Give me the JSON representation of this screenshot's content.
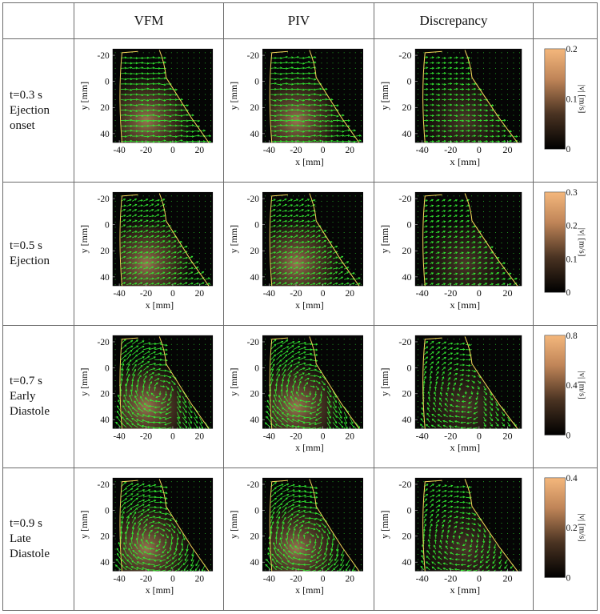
{
  "columns": [
    "VFM",
    "PIV",
    "Discrepancy"
  ],
  "rows": [
    {
      "time": "t=0.3 s",
      "phase_lines": [
        "Ejection",
        "onset"
      ],
      "cbar_ticks": [
        "0.2",
        "0.1",
        "0"
      ],
      "cbar_max": 0.2,
      "xlabels": [
        false,
        true,
        true
      ]
    },
    {
      "time": "t=0.5 s",
      "phase_lines": [
        "Ejection"
      ],
      "cbar_ticks": [
        "0.3",
        "0.2",
        "0.1",
        "0"
      ],
      "cbar_max": 0.3,
      "xlabels": [
        true,
        true,
        true
      ]
    },
    {
      "time": "t=0.7 s",
      "phase_lines": [
        "Early",
        "Diastole"
      ],
      "cbar_ticks": [
        "0.8",
        "0.4",
        "0"
      ],
      "cbar_max": 0.8,
      "xlabels": [
        false,
        true,
        true
      ]
    },
    {
      "time": "t=0.9 s",
      "phase_lines": [
        "Late",
        "Diastole"
      ],
      "cbar_ticks": [
        "0.4",
        "0.2",
        "0"
      ],
      "cbar_max": 0.4,
      "xlabels": [
        true,
        true,
        true
      ]
    }
  ],
  "axes": {
    "xlabel": "x [mm]",
    "ylabel": "y [mm]",
    "xticks": [
      "-40",
      "-20",
      "0",
      "20"
    ],
    "yticks": [
      "-20",
      "0",
      "20",
      "40"
    ]
  },
  "colorbar_label": "|v| [m/s]",
  "colors": {
    "vector": "#33ee33",
    "boundary": "#f2d35a",
    "background": "#050505",
    "cmap_high": "#f4b77c"
  }
}
